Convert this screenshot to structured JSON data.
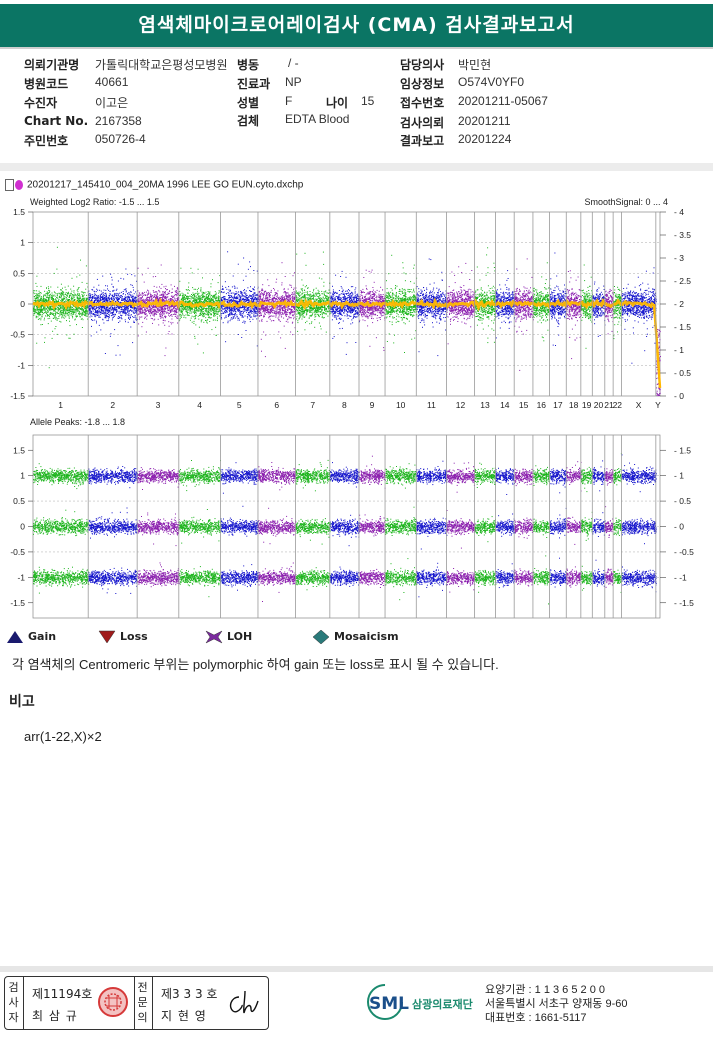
{
  "report": {
    "title": "염색체마이크로어레이검사 (CMA) 검사결과보고서"
  },
  "patient_info": {
    "institution_label": "의뢰기관명",
    "institution_value": "가톨릭대학교은평성모병원",
    "ward_label": "병동",
    "ward_value": "/ -",
    "doctor_label": "담당의사",
    "doctor_value": "박민현",
    "hospital_code_label": "병원코드",
    "hospital_code_value": "40661",
    "department_label": "진료과",
    "department_value": "NP",
    "clinical_label": "임상정보",
    "clinical_value": "O574V0YF0",
    "name_label": "수진자",
    "name_value": "이고은",
    "sex_label": "성별",
    "sex_value": "F",
    "age_label": "나이",
    "age_value": "15",
    "receipt_label": "접수번호",
    "receipt_value": "20201211-05067",
    "chart_label": "Chart No.",
    "chart_value": "2167358",
    "specimen_label": "검체",
    "specimen_value": "EDTA Blood",
    "request_label": "검사의뢰",
    "request_value": "20201211",
    "rrn_label": "주민번호",
    "rrn_value": "050726-4",
    "report_label": "결과보고",
    "report_value": "20201224"
  },
  "chart_data": [
    {
      "type": "scatter",
      "file_name": "20201217_145410_004_20MA 1996 LEE GO EUN.cyto.dxchp",
      "title": "Weighted Log2 Ratio: -1.5 ... 1.5",
      "right_title": "SmoothSignal: 0 ... 4",
      "ylim": [
        -1.5,
        1.5
      ],
      "yticks": [
        "1.5",
        "1",
        "0.5",
        "0",
        "-0.5",
        "-1",
        "-1.5"
      ],
      "right_ylim": [
        0,
        4
      ],
      "right_yticks": [
        "4",
        "3.5",
        "3",
        "2.5",
        "2",
        "1.5",
        "1",
        "0.5",
        "0"
      ],
      "categories": [
        "1",
        "2",
        "3",
        "4",
        "5",
        "6",
        "7",
        "8",
        "9",
        "10",
        "11",
        "12",
        "13",
        "14",
        "15",
        "16",
        "17",
        "18",
        "19",
        "20",
        "21",
        "22",
        "X",
        "Y"
      ],
      "smooth_signal": 2,
      "series_colors": [
        "#1db51d",
        "#1515cc",
        "#8b1fae"
      ],
      "smooth_color": "#ffb800"
    },
    {
      "type": "scatter",
      "title": "Allele Peaks: -1.8 ... 1.8",
      "ylim": [
        -1.8,
        1.8
      ],
      "yticks": [
        "1.5",
        "1",
        "0.5",
        "0",
        "-0.5",
        "-1",
        "-1.5"
      ],
      "right_yticks": [
        "1.5",
        "1",
        "0.5",
        "0",
        "-0.5",
        "-1",
        "-1.5"
      ],
      "bands": [
        1,
        0,
        -1
      ]
    }
  ],
  "legend": {
    "gain": "Gain",
    "loss": "Loss",
    "loh": "LOH",
    "mosaicism": "Mosaicism",
    "gain_color": "#1a1a6e",
    "loss_color": "#a01c1c",
    "loh_color": "#7a2a9e",
    "mosaic_color": "#2a7a7a"
  },
  "note": "각 염색체의 Centromeric 부위는 polymorphic 하여 gain 또는 loss로 표시 될 수 있습니다.",
  "remarks": {
    "title": "비고",
    "text": "arr(1-22,X)×2"
  },
  "signatures": {
    "examiner_label": "검사자",
    "examiner_no": "제11194호",
    "examiner_name": "최 삼 규",
    "specialist_label": "전문의",
    "specialist_no": "제3 3 3 호",
    "specialist_name": "지 현 영"
  },
  "organization": {
    "logo_text": "SML",
    "logo_name": "삼광의료재단",
    "line1": "요양기관 : 1 1 3 6 5 2 0 0",
    "line2": "서울특별시 서초구 양재동 9-60",
    "line3": "대표번호 : 1661-5117"
  }
}
